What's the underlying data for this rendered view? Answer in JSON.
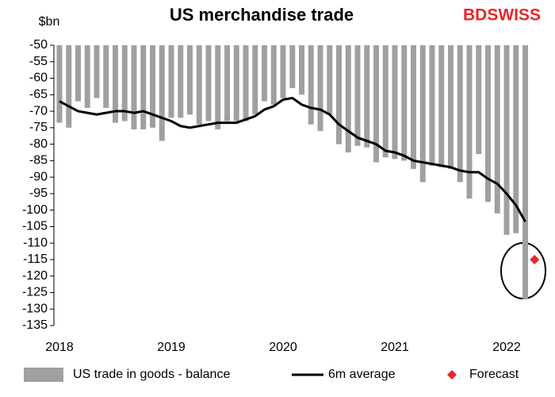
{
  "chart_data": {
    "type": "bar",
    "title": "US merchandise trade",
    "logo": "BDSWISS",
    "y_label": "$bn",
    "categories": [
      "2018",
      null,
      null,
      null,
      null,
      null,
      null,
      null,
      null,
      null,
      null,
      null,
      "2019",
      null,
      null,
      null,
      null,
      null,
      null,
      null,
      null,
      null,
      null,
      null,
      "2020",
      null,
      null,
      null,
      null,
      null,
      null,
      null,
      null,
      null,
      null,
      null,
      "2021",
      null,
      null,
      null,
      null,
      null,
      null,
      null,
      null,
      null,
      null,
      null,
      "2022",
      null,
      null,
      null
    ],
    "series": [
      {
        "name": "US trade in goods - balance",
        "type": "bar",
        "color": "#a0a0a0",
        "values": [
          -73.5,
          -75,
          -67,
          -69,
          -66,
          -69,
          -73.5,
          -73,
          -75.5,
          -75.5,
          -75,
          -79,
          -72,
          -72,
          -71,
          -74,
          -73,
          -75.5,
          -73,
          -73,
          -73,
          -71,
          -67,
          -68,
          -66,
          -63,
          -65,
          -74,
          -76,
          -71,
          -80,
          -82.5,
          -80.5,
          -81,
          -85.5,
          -84,
          -84.5,
          -85,
          -87.5,
          -91.5,
          -86.5,
          -87,
          -87.5,
          -91.5,
          -96.5,
          -83,
          -97.5,
          -101,
          -107.5,
          -107,
          -127,
          null
        ]
      },
      {
        "name": "6m average",
        "type": "line",
        "color": "#000000",
        "values": [
          -67,
          -68.5,
          -70,
          -70.5,
          -71,
          -70.5,
          -70,
          -70,
          -70.5,
          -70,
          -71,
          -72,
          -73,
          -74.5,
          -75,
          -74.5,
          -74,
          -73.5,
          -73.5,
          -73.5,
          -72.5,
          -71.5,
          -69.5,
          -68.5,
          -66.5,
          -66,
          -68,
          -69,
          -69.5,
          -71,
          -74,
          -76,
          -78,
          -79,
          -80,
          -82,
          -82.5,
          -83.5,
          -85,
          -85.5,
          -86,
          -86.5,
          -87,
          -88,
          -88.5,
          -88.5,
          -90.5,
          -92,
          -95,
          -98.5,
          -103.5,
          null
        ]
      },
      {
        "name": "Forecast",
        "type": "scatter",
        "color": "#e8262a",
        "values": [
          null,
          null,
          null,
          null,
          null,
          null,
          null,
          null,
          null,
          null,
          null,
          null,
          null,
          null,
          null,
          null,
          null,
          null,
          null,
          null,
          null,
          null,
          null,
          null,
          null,
          null,
          null,
          null,
          null,
          null,
          null,
          null,
          null,
          null,
          null,
          null,
          null,
          null,
          null,
          null,
          null,
          null,
          null,
          null,
          null,
          null,
          null,
          null,
          null,
          null,
          null,
          -115
        ]
      }
    ],
    "ylim": [
      -135,
      -50
    ],
    "yticks": [
      -50,
      -55,
      -60,
      -65,
      -70,
      -75,
      -80,
      -85,
      -90,
      -95,
      -100,
      -105,
      -110,
      -115,
      -120,
      -125,
      -130,
      -135
    ],
    "legend": "bottom"
  }
}
